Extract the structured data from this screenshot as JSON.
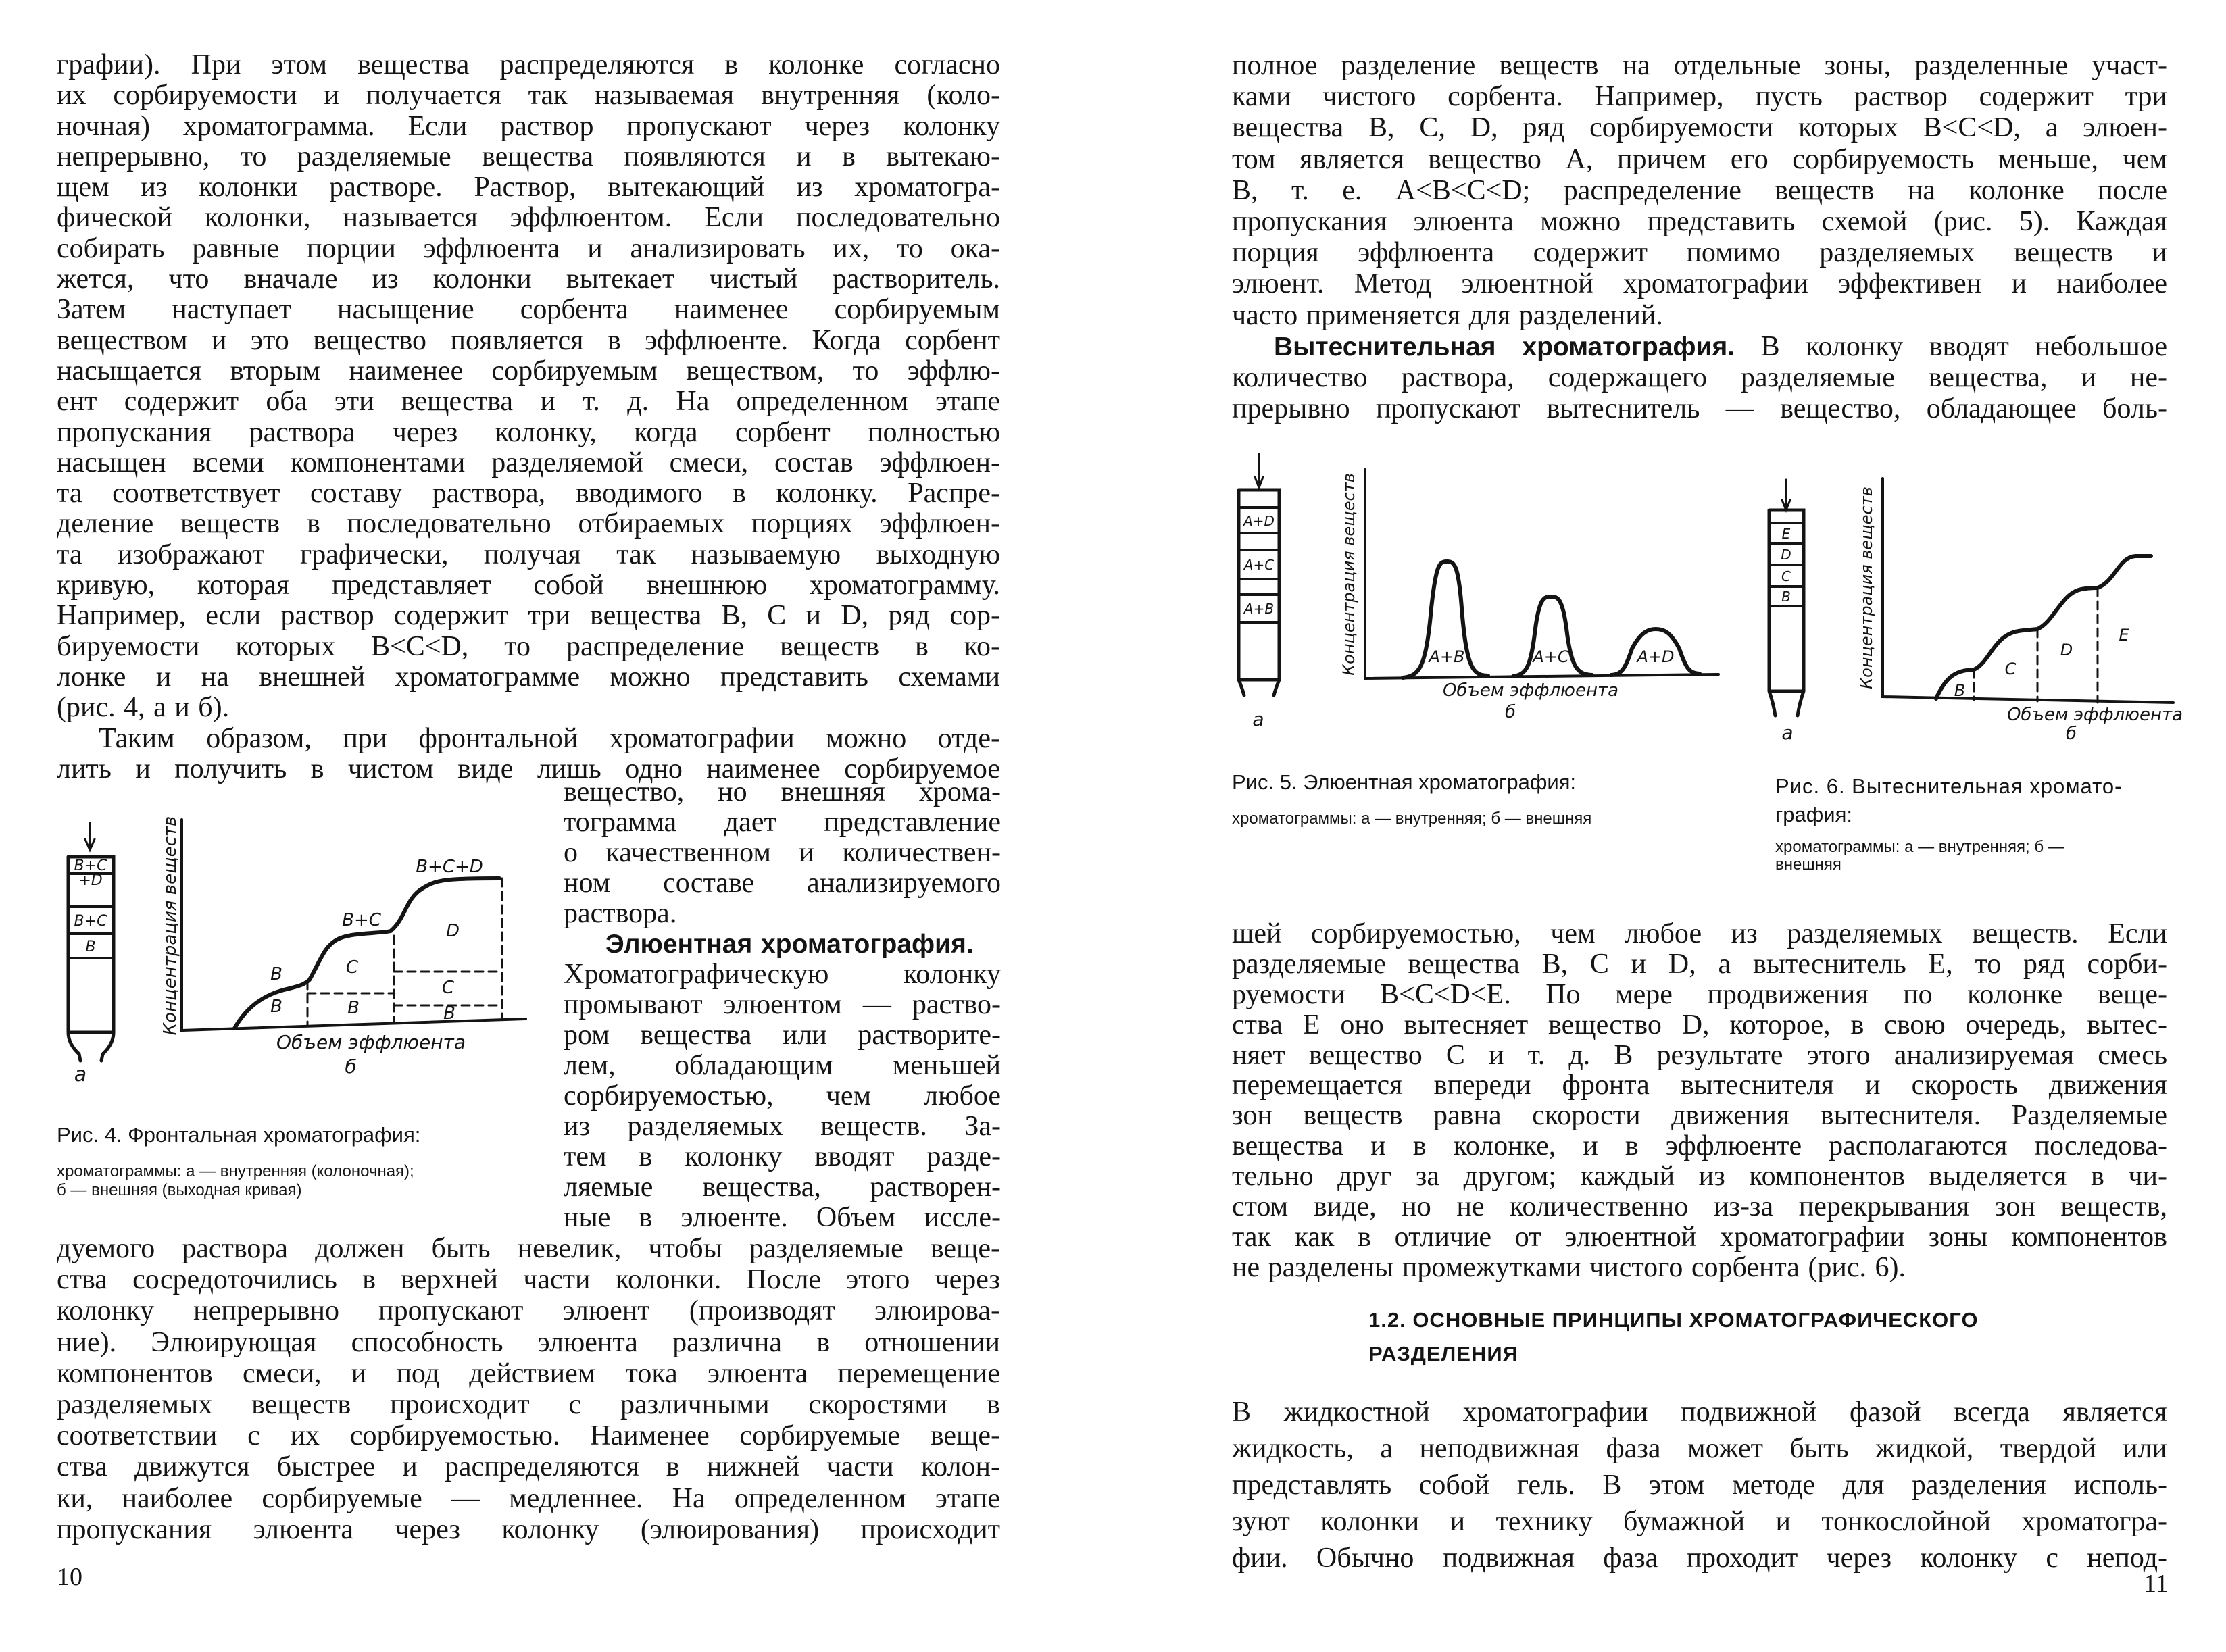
{
  "left_page": {
    "page_number": "10",
    "top": [
      {
        "indent": false,
        "ends": true,
        "lines": [
          "графии). При этом вещества распределяются в колонке согласно",
          "их сорбируемости и получается так называемая внутренняя (коло-",
          "ночная) хроматограмма. Если раствор пропускают через колонку",
          "непрерывно, то разделяемые вещества появляются и в вытекаю-",
          "щем из колонки растворе. Раствор, вытекающий из хроматогра-",
          "фической колонки, называется эффлюентом. Если последовательно",
          "собирать равные порции эффлюента и анализировать их, то ока-",
          "жется, что вначале из колонки вытекает чистый растворитель.",
          "Затем наступает насыщение сорбента наименее сорбируемым",
          "веществом и это вещество появляется в эффлюенте. Когда сорбент",
          "насыщается вторым наименее сорбируемым веществом, то эффлю-",
          "ент содержит оба эти вещества и т. д. На определенном этапе",
          "пропускания раствора через колонку, когда сорбент полностью",
          "насыщен всеми компонентами разделяемой смеси, состав эффлюен-",
          "та соответствует составу раствора, вводимого в колонку. Распре-",
          "деление веществ в последовательно отбираемых порциях эффлюен-",
          "та изображают графически, получая так называемую выходную",
          "кривую, которая представляет собой внешнюю хроматограмму.",
          "Например, если раствор содержит три вещества B, C и D, ряд сор-",
          "бируемости которых B<C<D, то распределение веществ в ко-",
          "лонке и на внешней хроматограмме можно представить схемами",
          "(рис. 4, а и б)."
        ]
      },
      {
        "indent": true,
        "ends": false,
        "lines": [
          "Таким образом, при фронтальной хроматографии можно отде-",
          "лить и получить в чистом виде лишь одно наименее сорбируемое"
        ]
      }
    ],
    "column": [
      {
        "indent": false,
        "ends": true,
        "lines": [
          "вещество, но внешняя хрома-",
          "тограмма дает представление",
          "о качественном и количествен-",
          "ном составе анализируемого",
          "раствора."
        ]
      },
      {
        "indent": true,
        "ends": false,
        "lines": [
          {
            "bold": "Элюентная хроматография.",
            "text": ""
          },
          "Хроматографическую колонку",
          "промывают элюентом — раство-",
          "ром вещества или растворите-",
          "лем, обладающим меньшей",
          "сорбируемостью, чем любое",
          "из разделяемых веществ. За-",
          "тем в колонку вводят разде-",
          "ляемые вещества, растворен-",
          "ные в элюенте. Объем иссле-"
        ]
      }
    ],
    "bottom": [
      {
        "indent": false,
        "ends": false,
        "lines": [
          "дуемого раствора должен быть невелик, чтобы разделяемые веще-",
          "ства сосредоточились в верхней части колонки. После этого через",
          "колонку непрерывно пропускают элюент (производят элюирова-",
          "ние). Элюирующая способность элюента различна в отношении",
          "компонентов смеси, и под действием тока элюента перемещение",
          "разделяемых веществ происходит с различными скоростями в",
          "соответствии с их сорбируемостью. Наименее сорбируемые веще-",
          "ства движутся быстрее и распределяются в нижней части колон-",
          "ки, наиболее сорбируемые — медленнее. На определенном этапе",
          "пропускания элюента через колонку (элюирования) происходит"
        ]
      }
    ],
    "figure4": {
      "column_labels": [
        "B+C",
        "+D",
        "B+C",
        "B"
      ],
      "column_caption": "а",
      "curve_labels": [
        "B",
        "B",
        "C",
        "B",
        "B+C",
        "D",
        "C",
        "B",
        "B+C+D"
      ],
      "y_axis_label": "Концентрация веществ",
      "x_axis_label": "Объем эффлюента",
      "chart_caption": "б",
      "caption": "Рис. 4. Фронтальная хроматография:",
      "caption_sub": [
        "хроматограммы: а — внутренняя (колоночная);",
        "б — внешняя (выходная кривая)"
      ]
    }
  },
  "right_page": {
    "page_number": "11",
    "top": [
      {
        "indent": false,
        "ends": true,
        "lines": [
          "полное разделение веществ на отдельные зоны, разделенные участ-",
          "ками чистого сорбента. Например, пусть раствор содержит три",
          "вещества B, C, D, ряд сорбируемости которых B<C<D, а элюен-",
          "том является вещество A, причем его сорбируемость меньше, чем",
          "B, т. е. A<B<C<D; распределение веществ на колонке после",
          "пропускания элюента можно представить схемой (рис. 5). Каждая",
          "порция эффлюента содержит помимо разделяемых веществ и",
          "элюент. Метод элюентной хроматографии эффективен и наиболее",
          "часто применяется для разделений."
        ]
      },
      {
        "indent": true,
        "ends": false,
        "lines": [
          {
            "bold": "Вытеснительная хроматография.",
            "text": " В колонку вводят небольшое"
          },
          "количество раствора, содержащего разделяемые вещества, и не-",
          "прерывно пропускают вытеснитель — вещество, обладающее боль-"
        ]
      }
    ],
    "bottom": [
      {
        "indent": false,
        "ends": true,
        "lines": [
          "шей сорбируемостью, чем любое из разделяемых веществ. Если",
          "разделяемые вещества B, C и D, а вытеснитель E, то ряд сорби-",
          "руемости B<C<D<E. По мере продвижения по колонке веще-",
          "ства E оно вытесняет вещество D, которое, в свою очередь, вытес-",
          "няет вещество C и т. д. В результате этого анализируемая смесь",
          "перемещается впереди фронта вытеснителя и скорость движения",
          "зон веществ равна скорости движения вытеснителя. Разделяемые",
          "вещества и в колонке, и в эффлюенте располагаются последова-",
          "тельно друг за другом; каждый из компонентов выделяется в чи-",
          "стом виде, но не количественно из-за перекрывания зон веществ,",
          "так как в отличие от элюентной хроматографии зоны компонентов",
          "не разделены промежутками чистого сорбента (рис. 6)."
        ]
      }
    ],
    "section_heading": [
      "1.2. ОСНОВНЫЕ ПРИНЦИПЫ ХРОМАТОГРАФИЧЕСКОГО",
      "РАЗДЕЛЕНИЯ"
    ],
    "final": [
      {
        "indent": false,
        "ends": false,
        "lines": [
          "В жидкостной хроматографии подвижной фазой всегда является",
          "жидкость, а неподвижная фаза может быть жидкой, твердой или",
          "представлять собой гель. В этом методе для разделения исполь-",
          "зуют колонки и технику бумажной и тонкослойной хроматогра-",
          "фии. Обычно подвижная фаза проходит через колонку с непод-"
        ]
      }
    ],
    "figure5": {
      "column_labels": [
        "A+D",
        "A+C",
        "A+B"
      ],
      "column_caption": "а",
      "peak_labels": [
        "A+B",
        "A+C",
        "A+D"
      ],
      "y_axis_label": "Концентрация веществ",
      "x_axis_label": "Объем эффлюента",
      "chart_caption": "б",
      "caption": "Рис. 5. Элюентная хроматография:",
      "caption_sub": [
        "хроматограммы: а — внутренняя; б — внешняя"
      ]
    },
    "figure6": {
      "column_labels": [
        "E",
        "D",
        "C",
        "B"
      ],
      "column_caption": "а",
      "zone_labels": [
        "B",
        "C",
        "D",
        "E"
      ],
      "y_axis_label": "Концентрация веществ",
      "x_axis_label": "Объем эффлюента",
      "chart_caption": "б",
      "caption": [
        "Рис. 6. Вытеснительная хромато-",
        "графия:"
      ],
      "caption_sub": [
        "хроматограммы: а — внутренняя; б —",
        "внешняя"
      ]
    }
  }
}
